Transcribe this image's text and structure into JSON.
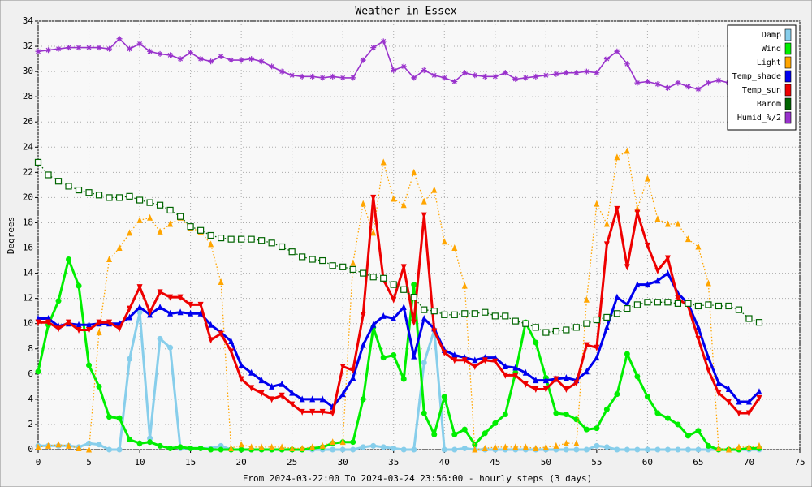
{
  "chart_data": {
    "type": "line",
    "title": "Weather in Essex",
    "ylabel": "Degrees",
    "xlabel": "From 2024-03-22:00 To 2024-03-24 23:56:00 - hourly steps (3 days)",
    "grid": true,
    "legend": "upper right",
    "xlim": [
      0,
      75
    ],
    "xticks": [
      0,
      5,
      10,
      15,
      20,
      25,
      30,
      35,
      40,
      45,
      50,
      55,
      60,
      65,
      70,
      75
    ],
    "ylim": [
      0,
      34
    ],
    "yticks": [
      0,
      2,
      4,
      6,
      8,
      10,
      12,
      14,
      16,
      18,
      20,
      22,
      24,
      26,
      28,
      30,
      32,
      34
    ],
    "x": [
      0,
      1,
      2,
      3,
      4,
      5,
      6,
      7,
      8,
      9,
      10,
      11,
      12,
      13,
      14,
      15,
      16,
      17,
      18,
      19,
      20,
      21,
      22,
      23,
      24,
      25,
      26,
      27,
      28,
      29,
      30,
      31,
      32,
      33,
      34,
      35,
      36,
      37,
      38,
      39,
      40,
      41,
      42,
      43,
      44,
      45,
      46,
      47,
      48,
      49,
      50,
      51,
      52,
      53,
      54,
      55,
      56,
      57,
      58,
      59,
      60,
      61,
      62,
      63,
      64,
      65,
      66,
      67,
      68,
      69,
      70,
      71
    ],
    "series": [
      {
        "name": "Damp",
        "color": "#87ceeb",
        "marker": "circle",
        "line_style": "solid",
        "values": [
          0.3,
          0.3,
          0.3,
          0.3,
          0.2,
          0.5,
          0.4,
          0.0,
          0.0,
          7.2,
          10.9,
          0.9,
          8.8,
          8.1,
          0.1,
          0.1,
          0.1,
          0.1,
          0.3,
          0.0,
          0.0,
          0.0,
          0.0,
          0.0,
          0.0,
          0.0,
          0.0,
          0.0,
          0.0,
          0.0,
          0.0,
          0.0,
          0.2,
          0.3,
          0.2,
          0.1,
          0.0,
          0.0,
          6.9,
          9.5,
          0.0,
          0.0,
          0.1,
          0.0,
          0.0,
          0.0,
          0.0,
          0.0,
          0.0,
          0.0,
          0.0,
          0.0,
          0.0,
          0.0,
          0.0,
          0.3,
          0.2,
          0.0,
          0.0,
          0.0,
          0.0,
          0.0,
          0.0,
          0.0,
          0.0,
          0.0,
          0.0,
          0.0,
          0.0,
          0.0,
          0.0,
          0.0
        ]
      },
      {
        "name": "Wind",
        "color": "#00ee00",
        "marker": "circle",
        "line_style": "solid",
        "values": [
          6.2,
          9.9,
          11.8,
          15.1,
          13.0,
          6.7,
          5.0,
          2.6,
          2.5,
          0.8,
          0.5,
          0.6,
          0.3,
          0.1,
          0.2,
          0.1,
          0.1,
          0.0,
          0.0,
          0.0,
          0.0,
          0.0,
          0.0,
          0.0,
          0.0,
          0.0,
          0.0,
          0.1,
          0.2,
          0.5,
          0.6,
          0.6,
          4.0,
          9.7,
          7.3,
          7.5,
          5.6,
          13.1,
          2.9,
          1.2,
          4.2,
          1.2,
          1.6,
          0.4,
          1.3,
          2.1,
          2.8,
          6.1,
          10.1,
          8.5,
          5.7,
          2.9,
          2.8,
          2.4,
          1.6,
          1.7,
          3.2,
          4.4,
          7.6,
          5.8,
          4.2,
          2.9,
          2.5,
          2.0,
          1.1,
          1.5,
          0.3,
          0.0,
          0.0,
          0.0,
          0.1,
          0.1
        ]
      },
      {
        "name": "Light",
        "color": "#ffa500",
        "marker": "triangle",
        "line_style": "dotted",
        "values": [
          0.2,
          0.3,
          0.4,
          0.3,
          0.1,
          0.0,
          9.3,
          15.1,
          16.0,
          17.2,
          18.2,
          18.4,
          17.3,
          17.9,
          18.4,
          17.6,
          17.3,
          16.3,
          13.3,
          0.1,
          0.4,
          0.2,
          0.2,
          0.2,
          0.2,
          0.1,
          0.1,
          0.2,
          0.3,
          0.6,
          0.6,
          14.8,
          19.5,
          17.2,
          22.8,
          19.9,
          19.4,
          22.0,
          19.7,
          20.6,
          16.5,
          16.0,
          13.0,
          0.0,
          0.1,
          0.2,
          0.2,
          0.2,
          0.2,
          0.1,
          0.2,
          0.3,
          0.5,
          0.5,
          11.9,
          19.5,
          17.9,
          23.2,
          23.7,
          19.1,
          21.5,
          18.3,
          17.9,
          17.9,
          16.7,
          16.1,
          13.2,
          0.1,
          0.0,
          0.2,
          0.2,
          0.3
        ]
      },
      {
        "name": "Temp_shade",
        "color": "#0000ee",
        "marker": "triangle",
        "line_style": "solid",
        "values": [
          10.4,
          10.4,
          9.8,
          10.0,
          9.9,
          9.9,
          10.0,
          10.0,
          10.0,
          10.5,
          11.3,
          10.7,
          11.3,
          10.8,
          10.9,
          10.8,
          10.8,
          9.9,
          9.3,
          8.6,
          6.7,
          6.1,
          5.5,
          5.0,
          5.2,
          4.5,
          4.0,
          4.0,
          4.0,
          3.4,
          4.4,
          5.7,
          8.3,
          9.9,
          10.6,
          10.4,
          11.3,
          7.4,
          10.4,
          9.6,
          7.9,
          7.5,
          7.3,
          7.1,
          7.3,
          7.3,
          6.6,
          6.5,
          6.1,
          5.5,
          5.5,
          5.6,
          5.7,
          5.5,
          6.2,
          7.3,
          9.7,
          12.1,
          11.5,
          13.1,
          13.1,
          13.4,
          14.0,
          12.4,
          11.6,
          9.7,
          7.3,
          5.3,
          4.8,
          3.8,
          3.8,
          4.6
        ]
      },
      {
        "name": "Temp_sun",
        "color": "#ee0000",
        "marker": "down-triangle",
        "line_style": "solid",
        "values": [
          10.1,
          10.1,
          9.6,
          10.1,
          9.5,
          9.5,
          10.1,
          10.1,
          9.6,
          11.2,
          12.9,
          10.9,
          12.5,
          12.1,
          12.1,
          11.5,
          11.5,
          8.7,
          9.2,
          7.8,
          5.6,
          4.9,
          4.5,
          4.0,
          4.3,
          3.6,
          3.0,
          3.0,
          3.0,
          2.9,
          6.6,
          6.3,
          10.7,
          20.0,
          13.5,
          11.9,
          14.5,
          10.1,
          18.6,
          9.4,
          7.7,
          7.1,
          7.1,
          6.6,
          7.1,
          7.0,
          5.9,
          5.9,
          5.2,
          4.8,
          4.8,
          5.6,
          4.8,
          5.3,
          8.3,
          8.1,
          16.3,
          19.1,
          14.5,
          18.8,
          16.2,
          14.2,
          15.2,
          12.0,
          11.4,
          8.8,
          6.3,
          4.5,
          3.8,
          2.9,
          2.9,
          4.1
        ]
      },
      {
        "name": "Barom",
        "color": "#006400",
        "marker": "square",
        "line_style": "dotted",
        "values": [
          22.8,
          21.8,
          21.3,
          20.9,
          20.6,
          20.4,
          20.2,
          20.0,
          20.0,
          20.1,
          19.8,
          19.6,
          19.4,
          19.0,
          18.5,
          17.7,
          17.4,
          17.0,
          16.8,
          16.7,
          16.7,
          16.7,
          16.6,
          16.4,
          16.1,
          15.7,
          15.3,
          15.1,
          15.0,
          14.6,
          14.5,
          14.3,
          14.0,
          13.7,
          13.6,
          13.1,
          12.7,
          12.1,
          11.1,
          11.0,
          10.7,
          10.7,
          10.8,
          10.8,
          10.9,
          10.6,
          10.6,
          10.2,
          10.0,
          9.7,
          9.3,
          9.4,
          9.5,
          9.7,
          10.0,
          10.3,
          10.5,
          10.8,
          11.2,
          11.5,
          11.7,
          11.7,
          11.7,
          11.6,
          11.6,
          11.4,
          11.5,
          11.4,
          11.4,
          11.1,
          10.4,
          10.1
        ]
      },
      {
        "name": "Humid_%/2",
        "color": "#9932cc",
        "marker": "star",
        "line_style": "solid",
        "values": [
          31.6,
          31.7,
          31.8,
          31.9,
          31.9,
          31.9,
          31.9,
          31.8,
          32.6,
          31.8,
          32.2,
          31.6,
          31.4,
          31.3,
          31.0,
          31.5,
          31.0,
          30.8,
          31.2,
          30.9,
          30.9,
          31.0,
          30.8,
          30.4,
          30.0,
          29.7,
          29.6,
          29.6,
          29.5,
          29.6,
          29.5,
          29.5,
          30.9,
          31.9,
          32.4,
          30.1,
          30.4,
          29.5,
          30.1,
          29.7,
          29.5,
          29.2,
          29.9,
          29.7,
          29.6,
          29.6,
          29.9,
          29.4,
          29.5,
          29.6,
          29.7,
          29.8,
          29.9,
          29.9,
          30.0,
          29.9,
          31.0,
          31.6,
          30.6,
          29.1,
          29.2,
          29.0,
          28.7,
          29.1,
          28.8,
          28.6,
          29.1,
          29.3,
          29.1,
          null,
          null,
          null
        ]
      }
    ]
  }
}
